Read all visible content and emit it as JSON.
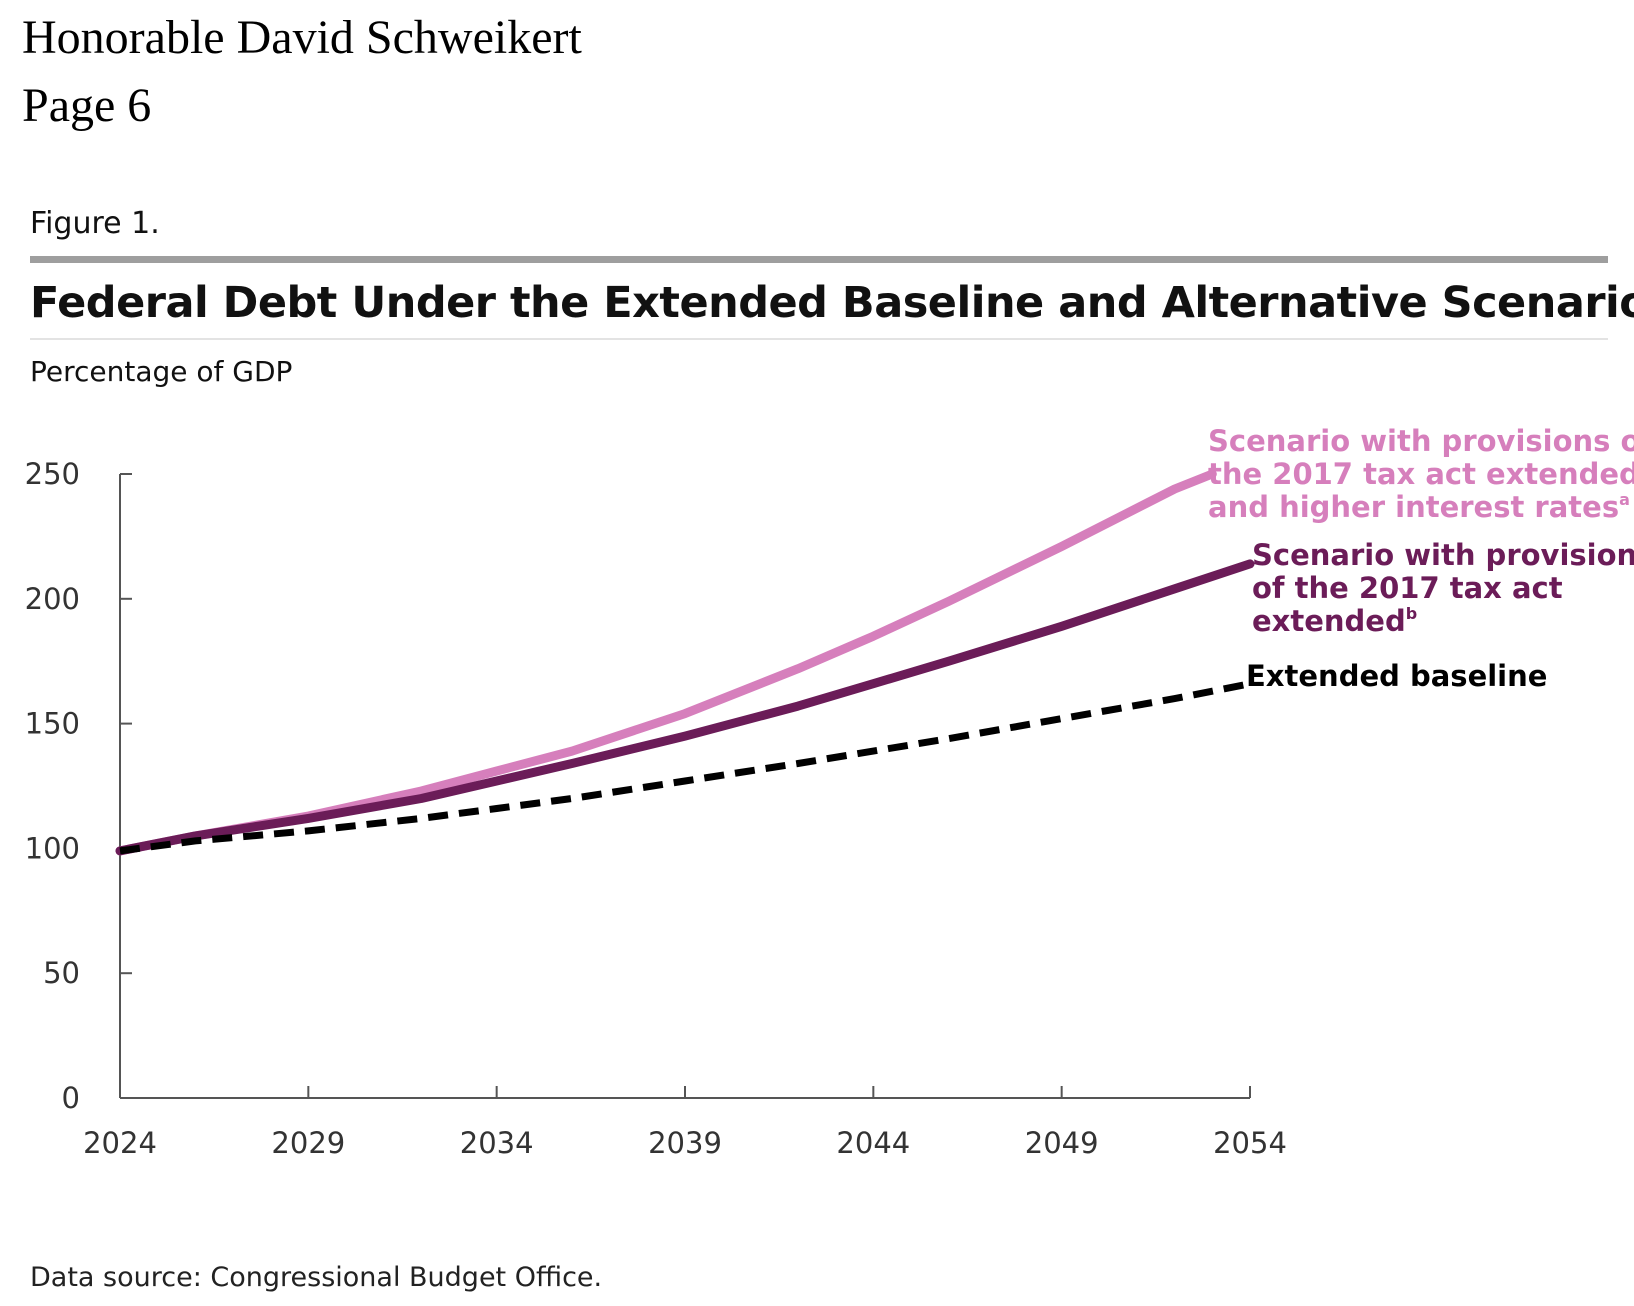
{
  "letterhead": {
    "recipient": "Honorable David Schweikert",
    "page": "Page 6"
  },
  "figure": {
    "label": "Figure 1.",
    "source": "Data source: Congressional Budget Office."
  },
  "chart_data": {
    "type": "line",
    "title": "Federal Debt Under the Extended Baseline and Alternative Scenarios",
    "ylabel": "Percentage of GDP",
    "xlabel": "",
    "xlim": [
      2024,
      2054
    ],
    "ylim": [
      0,
      250
    ],
    "x_ticks": [
      "2024",
      "2029",
      "2034",
      "2039",
      "2044",
      "2049",
      "2054"
    ],
    "y_ticks": [
      "0",
      "50",
      "100",
      "150",
      "200",
      "250"
    ],
    "grid": false,
    "legend": "direct labels at line ends",
    "series": [
      {
        "key": "higher_rates",
        "label_lines": [
          "Scenario with provisions of",
          "the 2017 tax act extended",
          "and higher interest rates"
        ],
        "label_note": "a",
        "color": "#d67fbc",
        "style": "solid",
        "x": [
          2024,
          2026,
          2029,
          2032,
          2034,
          2036,
          2039,
          2042,
          2044,
          2046,
          2049,
          2052,
          2053
        ],
        "y": [
          99,
          105,
          113,
          123,
          131,
          139,
          154,
          172,
          185,
          199,
          221,
          244,
          250
        ]
      },
      {
        "key": "tax_act",
        "label_lines": [
          "Scenario with provisions",
          "of the 2017 tax act",
          "extended"
        ],
        "label_note": "b",
        "color": "#6b1c58",
        "style": "solid",
        "x": [
          2024,
          2026,
          2029,
          2032,
          2034,
          2036,
          2039,
          2042,
          2044,
          2046,
          2049,
          2052,
          2054
        ],
        "y": [
          99,
          105,
          112,
          120,
          127,
          134,
          145,
          157,
          166,
          175,
          189,
          204,
          214
        ]
      },
      {
        "key": "baseline",
        "label_lines": [
          "Extended baseline"
        ],
        "label_note": "",
        "color": "#000000",
        "style": "dashed",
        "x": [
          2024,
          2026,
          2029,
          2032,
          2034,
          2036,
          2039,
          2042,
          2044,
          2046,
          2049,
          2052,
          2054
        ],
        "y": [
          99,
          103,
          107,
          112,
          116,
          120,
          127,
          134,
          139,
          144,
          152,
          160,
          166
        ]
      }
    ]
  }
}
